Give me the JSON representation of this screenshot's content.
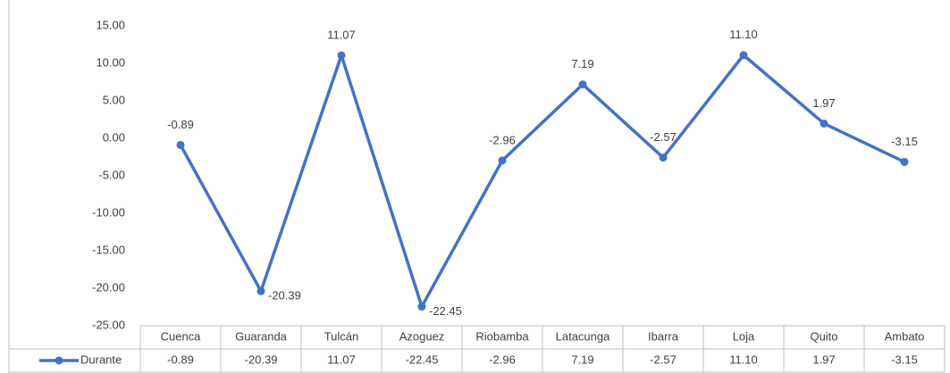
{
  "chart_data": {
    "type": "line",
    "categories": [
      "Cuenca",
      "Guaranda",
      "Tulcán",
      "Azoguez",
      "Riobamba",
      "Latacunga",
      "Ibarra",
      "Loja",
      "Quito",
      "Ambato"
    ],
    "series": [
      {
        "name": "Durante",
        "color": "#4472c4",
        "values": [
          -0.89,
          -20.39,
          11.07,
          -22.45,
          -2.96,
          7.19,
          -2.57,
          11.1,
          1.97,
          -3.15
        ],
        "value_labels": [
          "-0.89",
          "-20.39",
          "11.07",
          "-22.45",
          "-2.96",
          "7.19",
          "-2.57",
          "11.10",
          "1.97",
          "-3.15"
        ]
      }
    ],
    "ylim": [
      -25,
      15
    ],
    "yticks": [
      {
        "value": -25,
        "label": "-25.00"
      },
      {
        "value": -20,
        "label": "-20.00"
      },
      {
        "value": -15,
        "label": "-15.00"
      },
      {
        "value": -10,
        "label": "-10.00"
      },
      {
        "value": -5,
        "label": "-5.00"
      },
      {
        "value": 0,
        "label": "0.00"
      },
      {
        "value": 5,
        "label": "5.00"
      },
      {
        "value": 10,
        "label": "10.00"
      },
      {
        "value": 15,
        "label": "15.00"
      }
    ],
    "grid": false,
    "data_table": true
  }
}
